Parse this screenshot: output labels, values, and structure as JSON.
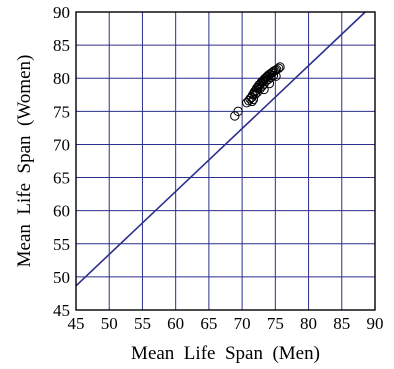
{
  "chart_data": {
    "type": "scatter",
    "title": "",
    "xlabel": "Mean  Life  Span  (Men)",
    "ylabel": "Mean  Life  Span  (Women)",
    "xlim": [
      45,
      90
    ],
    "ylim": [
      45,
      90
    ],
    "x_ticks": [
      45,
      50,
      55,
      60,
      65,
      70,
      75,
      80,
      85,
      90
    ],
    "y_ticks": [
      45,
      50,
      55,
      60,
      65,
      70,
      75,
      80,
      85,
      90
    ],
    "grid": true,
    "grid_color": "#2b2f8c",
    "reference_line": {
      "intercept": 5.9,
      "slope": 0.95,
      "color": "#2b2f8c"
    },
    "series": [
      {
        "marker": "circle",
        "color": "#000000",
        "points": [
          [
            68.9,
            74.3
          ],
          [
            69.4,
            75.0
          ],
          [
            70.7,
            76.3
          ],
          [
            71.0,
            76.6
          ],
          [
            71.2,
            76.9
          ],
          [
            71.4,
            77.1
          ],
          [
            71.6,
            77.5
          ],
          [
            71.8,
            77.8
          ],
          [
            71.9,
            78.0
          ],
          [
            72.1,
            78.2
          ],
          [
            72.2,
            78.5
          ],
          [
            72.4,
            78.6
          ],
          [
            72.5,
            78.9
          ],
          [
            72.6,
            79.0
          ],
          [
            72.8,
            79.2
          ],
          [
            72.9,
            79.4
          ],
          [
            73.1,
            79.5
          ],
          [
            73.2,
            79.7
          ],
          [
            73.4,
            79.9
          ],
          [
            73.5,
            80.0
          ],
          [
            73.7,
            80.2
          ],
          [
            73.8,
            80.3
          ],
          [
            74.0,
            80.5
          ],
          [
            74.2,
            80.6
          ],
          [
            74.4,
            80.8
          ],
          [
            74.6,
            80.9
          ],
          [
            74.8,
            81.1
          ],
          [
            75.0,
            81.2
          ],
          [
            75.2,
            81.3
          ],
          [
            75.5,
            81.5
          ],
          [
            75.7,
            81.7
          ],
          [
            72.0,
            77.6
          ],
          [
            72.3,
            77.9
          ],
          [
            72.7,
            78.4
          ],
          [
            73.0,
            78.8
          ],
          [
            73.3,
            79.1
          ],
          [
            73.6,
            79.6
          ],
          [
            73.9,
            79.8
          ],
          [
            74.3,
            80.1
          ],
          [
            74.7,
            80.4
          ],
          [
            71.5,
            76.5
          ],
          [
            71.7,
            76.8
          ],
          [
            73.3,
            78.3
          ],
          [
            74.1,
            79.2
          ],
          [
            75.1,
            80.3
          ]
        ]
      }
    ]
  }
}
